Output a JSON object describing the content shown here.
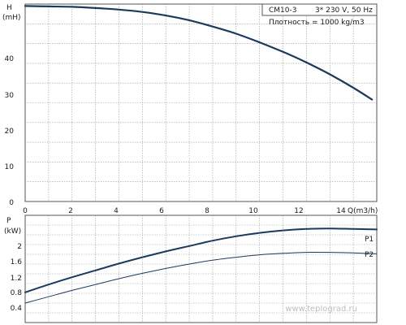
{
  "chart_data": [
    {
      "type": "line",
      "info": {
        "model": "CM10-3",
        "power_supply": "3* 230 V, 50 Hz",
        "density": "Плотность = 1000 kg/m3"
      },
      "ylabel": "H",
      "yunit": "(mH)",
      "xlabel": "Q(m3/h)",
      "xlim": [
        0,
        15
      ],
      "ylim": [
        0,
        50
      ],
      "xticks": [
        "0",
        "2",
        "4",
        "6",
        "8",
        "10",
        "12",
        "14"
      ],
      "yticks": [
        "0",
        "10",
        "20",
        "30",
        "40"
      ],
      "grid": true,
      "series": [
        {
          "x": [
            0,
            1,
            2,
            3,
            4,
            5,
            6,
            7,
            8,
            9,
            10,
            11,
            12,
            13,
            14,
            14.8
          ],
          "y": [
            49.5,
            49.4,
            49.3,
            49.0,
            48.6,
            48.0,
            47.1,
            45.9,
            44.3,
            42.5,
            40.3,
            37.9,
            35.2,
            32.2,
            28.8,
            25.8
          ],
          "color": "#1b3a5c"
        }
      ]
    },
    {
      "type": "line",
      "ylabel": "P",
      "yunit": "(kW)",
      "xlim": [
        0,
        15
      ],
      "ylim": [
        0.4,
        2.6
      ],
      "yticks": [
        "0.4",
        "0.8",
        "1.2",
        "1.6",
        "2"
      ],
      "grid": true,
      "series": [
        {
          "name": "P1",
          "x": [
            0,
            1,
            2,
            3,
            4,
            5,
            6,
            7,
            8,
            9,
            10,
            11,
            12,
            13,
            14,
            15
          ],
          "y": [
            1.02,
            1.18,
            1.33,
            1.47,
            1.61,
            1.74,
            1.86,
            1.97,
            2.08,
            2.17,
            2.24,
            2.29,
            2.32,
            2.33,
            2.32,
            2.31
          ],
          "color": "#1b3a5c"
        },
        {
          "name": "P2",
          "x": [
            0,
            1,
            2,
            3,
            4,
            5,
            6,
            7,
            8,
            9,
            10,
            11,
            12,
            13,
            14,
            15
          ],
          "y": [
            0.8,
            0.93,
            1.06,
            1.18,
            1.3,
            1.41,
            1.51,
            1.6,
            1.68,
            1.74,
            1.79,
            1.82,
            1.84,
            1.84,
            1.83,
            1.81
          ],
          "color": "#1b3a5c"
        }
      ]
    }
  ],
  "watermark": "www.teplograd.ru"
}
